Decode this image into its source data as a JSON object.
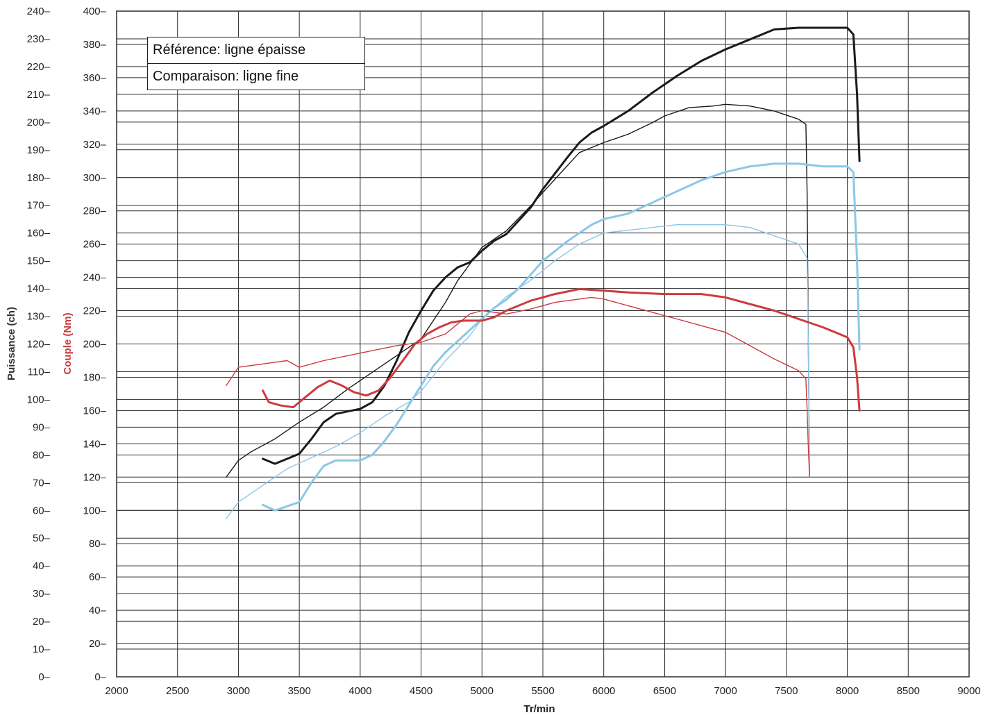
{
  "chart_data": {
    "type": "line",
    "xlabel": "Tr/min",
    "ylabel_left": "Puissance (ch)",
    "ylabel_right": "Couple (Nm)",
    "x_ticks": [
      2000,
      2500,
      3000,
      3500,
      4000,
      4500,
      5000,
      5500,
      6000,
      6500,
      7000,
      7500,
      8000,
      8500,
      9000
    ],
    "power_ticks": [
      0,
      10,
      20,
      30,
      40,
      50,
      60,
      70,
      80,
      90,
      100,
      110,
      120,
      130,
      140,
      150,
      160,
      170,
      180,
      190,
      200,
      210,
      220,
      230,
      240
    ],
    "torque_ticks": [
      0,
      20,
      40,
      60,
      80,
      100,
      120,
      140,
      160,
      180,
      200,
      220,
      240,
      260,
      280,
      300,
      320,
      340,
      360,
      380,
      400
    ],
    "xlim": [
      2000,
      9000
    ],
    "power_lim": [
      0,
      240
    ],
    "torque_lim": [
      0,
      400
    ],
    "grid": true,
    "legend": {
      "position": "top-left",
      "entries": [
        "Référence: ligne épaisse",
        "Comparaison: ligne fine"
      ]
    },
    "colors": {
      "black": "#1a1a1a",
      "blue": "#8cc7e6",
      "red": "#cc3a40",
      "grid": "#2b2b2b",
      "axis_title_left": "#333333",
      "axis_title_right": "#cc3a40"
    },
    "series": [
      {
        "axis": "torque",
        "line": "thick",
        "color": "black",
        "points": [
          [
            3200,
            131
          ],
          [
            3300,
            128
          ],
          [
            3500,
            134
          ],
          [
            3600,
            143
          ],
          [
            3700,
            153
          ],
          [
            3800,
            158
          ],
          [
            4000,
            161
          ],
          [
            4100,
            165
          ],
          [
            4200,
            175
          ],
          [
            4300,
            190
          ],
          [
            4400,
            207
          ],
          [
            4500,
            220
          ],
          [
            4600,
            232
          ],
          [
            4700,
            240
          ],
          [
            4800,
            246
          ],
          [
            4900,
            249
          ],
          [
            5000,
            256
          ],
          [
            5100,
            262
          ],
          [
            5200,
            266
          ],
          [
            5400,
            282
          ],
          [
            5500,
            293
          ],
          [
            5700,
            312
          ],
          [
            5800,
            321
          ],
          [
            5900,
            327
          ],
          [
            6000,
            331
          ],
          [
            6200,
            340
          ],
          [
            6400,
            351
          ],
          [
            6600,
            361
          ],
          [
            6800,
            370
          ],
          [
            7000,
            377
          ],
          [
            7200,
            383
          ],
          [
            7400,
            389
          ],
          [
            7600,
            390
          ],
          [
            7800,
            390
          ],
          [
            8000,
            390
          ],
          [
            8050,
            386
          ],
          [
            8080,
            350
          ],
          [
            8100,
            310
          ]
        ]
      },
      {
        "axis": "torque",
        "line": "thin",
        "color": "black",
        "points": [
          [
            2900,
            120
          ],
          [
            3000,
            130
          ],
          [
            3100,
            135
          ],
          [
            3300,
            143
          ],
          [
            3400,
            148
          ],
          [
            3500,
            153
          ],
          [
            3700,
            162
          ],
          [
            3900,
            173
          ],
          [
            4000,
            178
          ],
          [
            4200,
            188
          ],
          [
            4400,
            198
          ],
          [
            4500,
            203
          ],
          [
            4700,
            225
          ],
          [
            4800,
            238
          ],
          [
            5000,
            258
          ],
          [
            5200,
            268
          ],
          [
            5400,
            283
          ],
          [
            5600,
            299
          ],
          [
            5800,
            315
          ],
          [
            6000,
            321
          ],
          [
            6200,
            326
          ],
          [
            6400,
            333
          ],
          [
            6500,
            337
          ],
          [
            6700,
            342
          ],
          [
            6900,
            343
          ],
          [
            7000,
            344
          ],
          [
            7200,
            343
          ],
          [
            7400,
            340
          ],
          [
            7600,
            335
          ],
          [
            7660,
            332
          ],
          [
            7670,
            290
          ],
          [
            7680,
            200
          ],
          [
            7690,
            120
          ]
        ]
      },
      {
        "axis": "power",
        "line": "thick",
        "color": "blue",
        "points": [
          [
            3200,
            62
          ],
          [
            3300,
            60
          ],
          [
            3500,
            63
          ],
          [
            3600,
            70
          ],
          [
            3700,
            76
          ],
          [
            3800,
            78
          ],
          [
            4000,
            78
          ],
          [
            4100,
            80
          ],
          [
            4200,
            85
          ],
          [
            4300,
            91
          ],
          [
            4400,
            98
          ],
          [
            4500,
            105
          ],
          [
            4600,
            112
          ],
          [
            4700,
            117
          ],
          [
            4800,
            121
          ],
          [
            4900,
            125
          ],
          [
            5000,
            129
          ],
          [
            5100,
            133
          ],
          [
            5200,
            136
          ],
          [
            5300,
            140
          ],
          [
            5400,
            145
          ],
          [
            5500,
            150
          ],
          [
            5700,
            157
          ],
          [
            5800,
            160
          ],
          [
            5900,
            163
          ],
          [
            6000,
            165
          ],
          [
            6200,
            167
          ],
          [
            6400,
            171
          ],
          [
            6600,
            175
          ],
          [
            6800,
            179
          ],
          [
            7000,
            182
          ],
          [
            7200,
            184
          ],
          [
            7400,
            185
          ],
          [
            7600,
            185
          ],
          [
            7800,
            184
          ],
          [
            8000,
            184
          ],
          [
            8050,
            182
          ],
          [
            8080,
            150
          ],
          [
            8100,
            118
          ]
        ]
      },
      {
        "axis": "power",
        "line": "thin",
        "color": "blue",
        "points": [
          [
            2900,
            57
          ],
          [
            3000,
            63
          ],
          [
            3200,
            69
          ],
          [
            3400,
            75
          ],
          [
            3600,
            79
          ],
          [
            3800,
            83
          ],
          [
            4000,
            88
          ],
          [
            4200,
            94
          ],
          [
            4400,
            99
          ],
          [
            4500,
            103
          ],
          [
            4700,
            114
          ],
          [
            4900,
            123
          ],
          [
            5000,
            129
          ],
          [
            5200,
            137
          ],
          [
            5400,
            143
          ],
          [
            5600,
            150
          ],
          [
            5800,
            156
          ],
          [
            6000,
            160
          ],
          [
            6200,
            161
          ],
          [
            6400,
            162
          ],
          [
            6600,
            163
          ],
          [
            6800,
            163
          ],
          [
            7000,
            163
          ],
          [
            7200,
            162
          ],
          [
            7400,
            159
          ],
          [
            7600,
            156
          ],
          [
            7670,
            151
          ],
          [
            7680,
            120
          ],
          [
            7690,
            72
          ]
        ]
      },
      {
        "axis": "torque",
        "line": "thick",
        "color": "red",
        "points": [
          [
            3200,
            172
          ],
          [
            3250,
            165
          ],
          [
            3350,
            163
          ],
          [
            3450,
            162
          ],
          [
            3550,
            168
          ],
          [
            3650,
            174
          ],
          [
            3750,
            178
          ],
          [
            3850,
            175
          ],
          [
            3950,
            171
          ],
          [
            4050,
            169
          ],
          [
            4150,
            172
          ],
          [
            4250,
            180
          ],
          [
            4350,
            190
          ],
          [
            4450,
            200
          ],
          [
            4550,
            206
          ],
          [
            4650,
            210
          ],
          [
            4750,
            213
          ],
          [
            4850,
            214
          ],
          [
            5000,
            214
          ],
          [
            5100,
            216
          ],
          [
            5200,
            220
          ],
          [
            5400,
            226
          ],
          [
            5600,
            230
          ],
          [
            5800,
            233
          ],
          [
            6000,
            232
          ],
          [
            6200,
            231
          ],
          [
            6500,
            230
          ],
          [
            6800,
            230
          ],
          [
            7000,
            228
          ],
          [
            7200,
            224
          ],
          [
            7400,
            220
          ],
          [
            7600,
            215
          ],
          [
            7800,
            210
          ],
          [
            8000,
            204
          ],
          [
            8050,
            198
          ],
          [
            8080,
            180
          ],
          [
            8100,
            160
          ]
        ]
      },
      {
        "axis": "torque",
        "line": "thin",
        "color": "red",
        "points": [
          [
            2900,
            175
          ],
          [
            3000,
            186
          ],
          [
            3200,
            188
          ],
          [
            3400,
            190
          ],
          [
            3500,
            186
          ],
          [
            3700,
            190
          ],
          [
            3900,
            193
          ],
          [
            4100,
            196
          ],
          [
            4300,
            199
          ],
          [
            4500,
            201
          ],
          [
            4700,
            206
          ],
          [
            4900,
            218
          ],
          [
            5000,
            220
          ],
          [
            5200,
            218
          ],
          [
            5400,
            221
          ],
          [
            5600,
            225
          ],
          [
            5800,
            227
          ],
          [
            5900,
            228
          ],
          [
            6000,
            227
          ],
          [
            6200,
            223
          ],
          [
            6400,
            219
          ],
          [
            6600,
            215
          ],
          [
            6800,
            211
          ],
          [
            7000,
            207
          ],
          [
            7200,
            199
          ],
          [
            7400,
            191
          ],
          [
            7600,
            184
          ],
          [
            7660,
            179
          ],
          [
            7670,
            160
          ],
          [
            7680,
            138
          ],
          [
            7690,
            120
          ]
        ]
      }
    ]
  }
}
